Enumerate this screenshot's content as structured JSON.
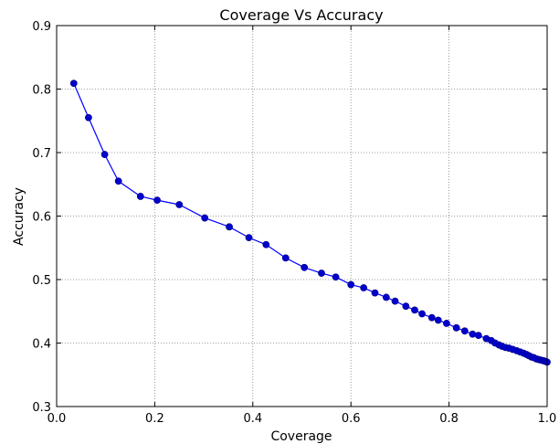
{
  "chart_data": {
    "type": "line",
    "title": "Coverage Vs Accuracy",
    "xlabel": "Coverage",
    "ylabel": "Accuracy",
    "xlim": [
      0.0,
      1.0
    ],
    "ylim": [
      0.3,
      0.9
    ],
    "x_ticks": [
      "0.0",
      "0.2",
      "0.4",
      "0.6",
      "0.8",
      "1.0"
    ],
    "y_ticks": [
      "0.3",
      "0.4",
      "0.5",
      "0.6",
      "0.7",
      "0.8",
      "0.9"
    ],
    "grid": true,
    "legend": "none",
    "marker": "circle",
    "colors": {
      "line": "#0000ff",
      "marker_fill": "#0000cc",
      "marker_edge": "#000080",
      "grid": "#808080"
    },
    "series": [
      {
        "x": [
          0.035,
          0.065,
          0.098,
          0.126,
          0.171,
          0.205,
          0.25,
          0.302,
          0.352,
          0.392,
          0.427,
          0.467,
          0.505,
          0.54,
          0.569,
          0.6,
          0.626,
          0.649,
          0.672,
          0.69,
          0.712,
          0.73,
          0.745,
          0.765,
          0.778,
          0.795,
          0.815,
          0.832,
          0.848,
          0.86,
          0.876,
          0.886,
          0.894,
          0.902,
          0.908,
          0.915,
          0.922,
          0.93,
          0.938,
          0.945,
          0.952,
          0.958,
          0.963,
          0.968,
          0.973,
          0.978,
          0.983,
          0.988,
          0.993,
          0.997,
          1.0
        ],
        "y": [
          0.809,
          0.755,
          0.697,
          0.655,
          0.631,
          0.625,
          0.618,
          0.597,
          0.583,
          0.566,
          0.555,
          0.534,
          0.519,
          0.51,
          0.504,
          0.492,
          0.487,
          0.479,
          0.472,
          0.466,
          0.458,
          0.452,
          0.446,
          0.44,
          0.436,
          0.431,
          0.424,
          0.419,
          0.414,
          0.412,
          0.407,
          0.404,
          0.4,
          0.397,
          0.395,
          0.393,
          0.392,
          0.39,
          0.388,
          0.386,
          0.384,
          0.382,
          0.38,
          0.378,
          0.377,
          0.375,
          0.374,
          0.373,
          0.372,
          0.371,
          0.37
        ]
      }
    ]
  }
}
